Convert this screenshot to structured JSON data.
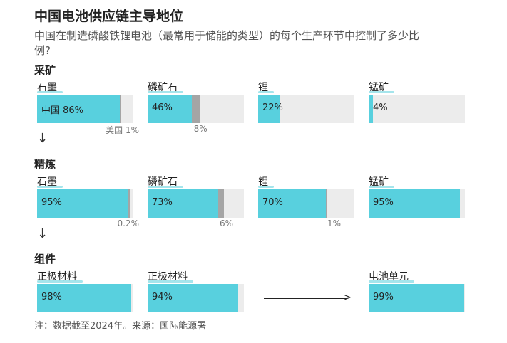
{
  "chart_data": {
    "type": "bar",
    "title": "中国电池供应链主导地位",
    "subtitle": "中国在制造磷酸铁锂电池（最常用于储能的类型）的每个生产环节中控制了多少比例?",
    "stages": [
      {
        "label": "采矿",
        "items": [
          {
            "name": "石墨",
            "china": 86,
            "china_label": "中国 86%",
            "us": 1,
            "us_label": "美国 1%"
          },
          {
            "name": "磷矿石",
            "china": 46,
            "china_label": "46%",
            "us": 8,
            "us_label": "8%"
          },
          {
            "name": "锂",
            "china": 22,
            "china_label": "22%"
          },
          {
            "name": "锰矿",
            "china": 4,
            "china_label": "4%"
          }
        ]
      },
      {
        "label": "精炼",
        "items": [
          {
            "name": "石墨",
            "china": 95,
            "china_label": "95%",
            "us": 0.2,
            "us_label": "0.2%"
          },
          {
            "name": "磷矿石",
            "china": 73,
            "china_label": "73%",
            "us": 6,
            "us_label": "6%"
          },
          {
            "name": "锂",
            "china": 70,
            "china_label": "70%",
            "us": 1,
            "us_label": "1%"
          },
          {
            "name": "锰矿",
            "china": 95,
            "china_label": "95%"
          }
        ]
      },
      {
        "label": "组件",
        "items": [
          {
            "name": "正极材料",
            "china": 98,
            "china_label": "98%"
          },
          {
            "name": "正极材料",
            "china": 94,
            "china_label": "94%"
          },
          {
            "name": "电池单元",
            "china": 99,
            "china_label": "99%"
          }
        ]
      }
    ],
    "ylim": [
      0,
      100
    ],
    "arrow_down": "↓",
    "footnote": "注：数据截至2024年。来源：国际能源署"
  },
  "colors": {
    "china": "#58d0de",
    "us": "#a5a5a5",
    "track": "#ececec"
  }
}
